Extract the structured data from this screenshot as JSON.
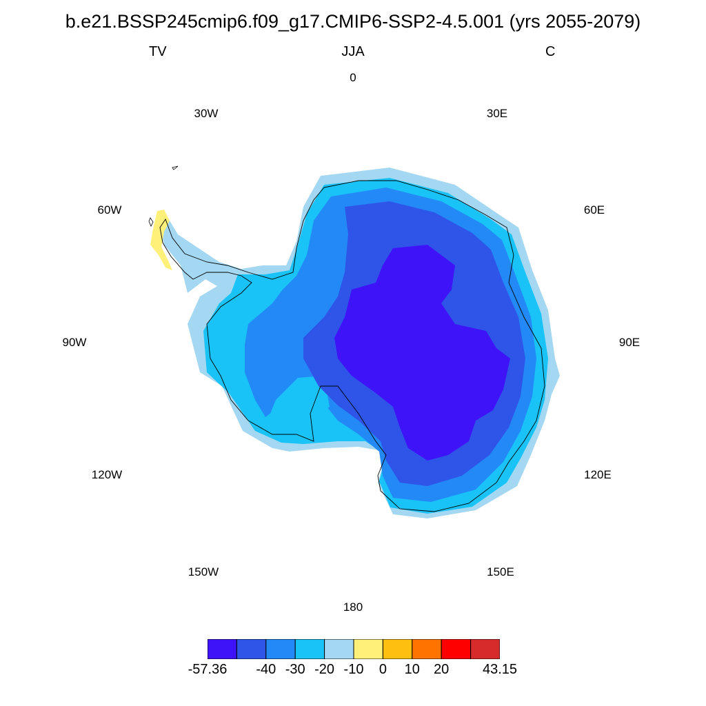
{
  "header": {
    "title": "b.e21.BSSP245cmip6.f09_g17.CMIP6-SSP2-4.5.001 (yrs 2055-2079)",
    "left": "TV",
    "center": "JJA",
    "right": "C"
  },
  "longitude_labels": [
    "0",
    "30E",
    "60E",
    "90E",
    "120E",
    "150E",
    "180",
    "150W",
    "120W",
    "90W",
    "60W",
    "30W"
  ],
  "colorbar": {
    "colors": [
      "#3f13f7",
      "#2e55e8",
      "#2389f7",
      "#19c2f7",
      "#a4d8f2",
      "#fff07a",
      "#ffbf10",
      "#ff7300",
      "#ff0000",
      "#d62b2b"
    ],
    "labels": [
      "-57.36",
      "-40",
      "-30",
      "-20",
      "-10",
      "0",
      "10",
      "20",
      "43.15"
    ]
  },
  "map": {
    "projection": "south polar stereographic",
    "legend_placement": "bottom",
    "levels": [
      "-57.36",
      "-40",
      "-30",
      "-20",
      "-10",
      "0",
      "10",
      "20",
      "43.15"
    ]
  }
}
